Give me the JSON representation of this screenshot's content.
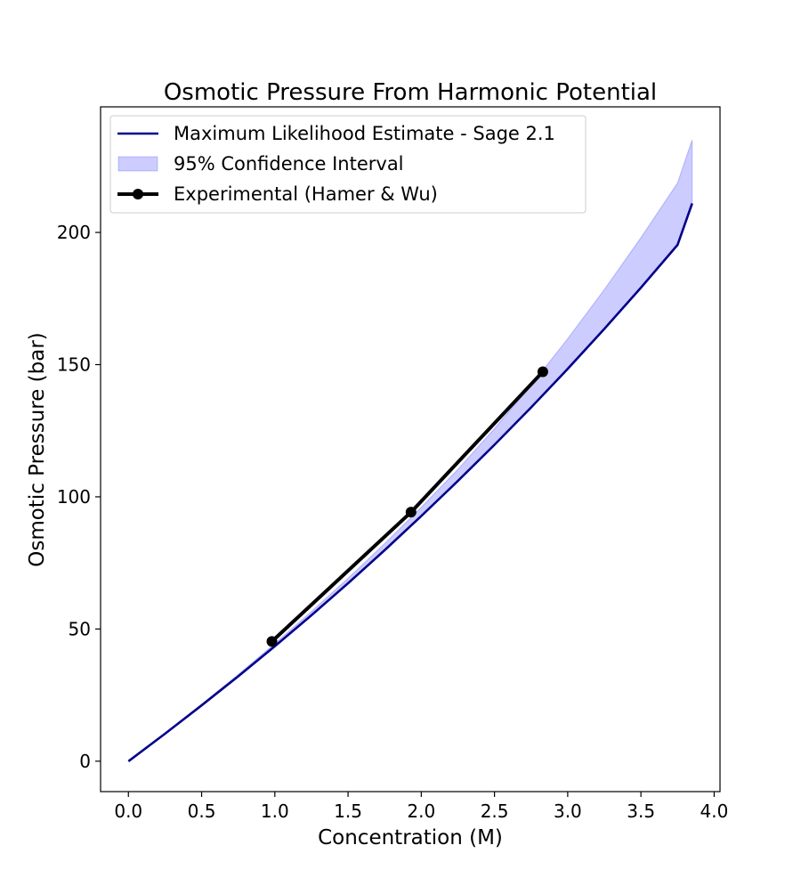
{
  "chart_data": {
    "type": "line",
    "title": "Osmotic Pressure From Harmonic Potential",
    "xlabel": "Concentration (M)",
    "ylabel": "Osmotic Pressure (bar)",
    "xlim": [
      -0.19,
      4.04
    ],
    "ylim": [
      -11.5,
      247.5
    ],
    "xticks": [
      0.0,
      0.5,
      1.0,
      1.5,
      2.0,
      2.5,
      3.0,
      3.5,
      4.0
    ],
    "xtick_labels": [
      "0.0",
      "0.5",
      "1.0",
      "1.5",
      "2.0",
      "2.5",
      "3.0",
      "3.5",
      "4.0"
    ],
    "yticks": [
      0,
      50,
      100,
      150,
      200
    ],
    "ytick_labels": [
      "0",
      "50",
      "100",
      "150",
      "200"
    ],
    "grid": false,
    "legend_position": "upper-left",
    "series": [
      {
        "name": "Maximum Likelihood Estimate - Sage 2.1",
        "kind": "line",
        "color": "#00008b",
        "x": [
          0.0,
          0.25,
          0.5,
          0.75,
          1.0,
          1.25,
          1.5,
          1.75,
          2.0,
          2.25,
          2.5,
          2.75,
          3.0,
          3.25,
          3.5,
          3.75,
          3.85
        ],
        "y": [
          0,
          10.4,
          21.1,
          32.1,
          43.5,
          55.2,
          67.3,
          79.8,
          92.7,
          106.0,
          119.7,
          133.8,
          148.4,
          163.5,
          179.1,
          195.3,
          211.0
        ]
      },
      {
        "name": "95% Confidence Interval",
        "kind": "band",
        "color": "#0000ff",
        "x": [
          0.0,
          0.25,
          0.5,
          0.75,
          1.0,
          1.25,
          1.5,
          1.75,
          2.0,
          2.25,
          2.5,
          2.75,
          3.0,
          3.25,
          3.5,
          3.75,
          3.85
        ],
        "lower": [
          0,
          10.4,
          21.1,
          32.1,
          43.5,
          55.2,
          67.3,
          79.8,
          92.7,
          106.0,
          119.7,
          133.8,
          148.4,
          163.5,
          179.1,
          195.3,
          211.0
        ],
        "upper": [
          0,
          10.6,
          21.5,
          32.8,
          44.5,
          56.6,
          69.2,
          82.3,
          96.0,
          110.4,
          125.8,
          142.2,
          159.8,
          178.4,
          198.0,
          218.7,
          235.0
        ]
      },
      {
        "name": "Experimental (Hamer & Wu)",
        "kind": "line-markers",
        "color": "#000000",
        "x": [
          0.98,
          1.93,
          2.83
        ],
        "y": [
          45.3,
          94.2,
          147.3
        ]
      }
    ]
  }
}
